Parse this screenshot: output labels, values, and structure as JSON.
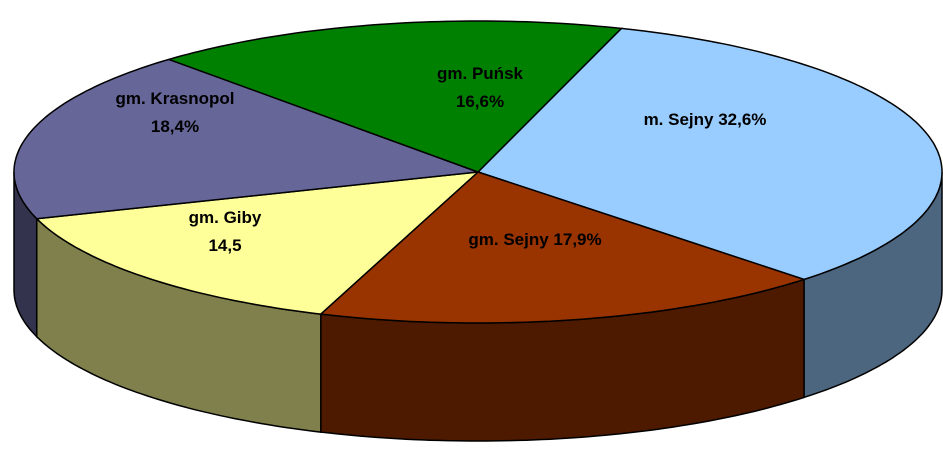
{
  "chart_data": {
    "type": "pie",
    "three_d": true,
    "categories": [
      "m. Sejny",
      "gm. Sejny",
      "gm. Giby",
      "gm. Krasnopol",
      "gm. Puńsk"
    ],
    "values": [
      32.6,
      17.9,
      14.5,
      18.4,
      16.6
    ],
    "value_labels": [
      "32,6%",
      "17,9%",
      "14,5",
      "18,4%",
      "16,6%"
    ],
    "colors": [
      "#99ccff",
      "#993300",
      "#ffff99",
      "#666699",
      "#008000"
    ]
  }
}
